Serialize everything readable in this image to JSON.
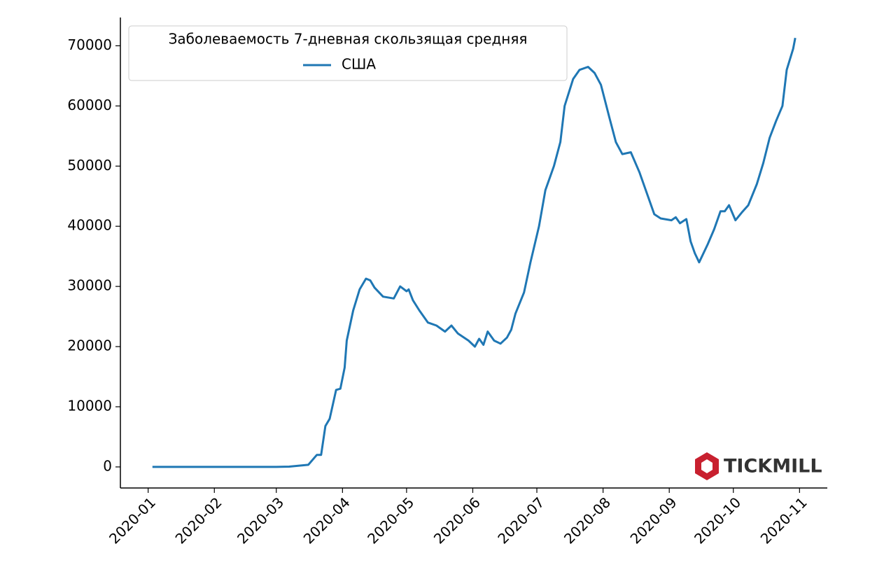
{
  "chart_data": {
    "type": "line",
    "legend_title": "Заболеваемость 7-дневная скользящая средняя",
    "legend_position": "upper left",
    "watermark": "TICKMILL",
    "x": [
      2,
      10,
      20,
      30,
      40,
      50,
      60,
      66,
      75,
      79,
      81,
      83,
      85,
      88,
      90,
      92,
      93,
      96,
      99,
      102,
      104,
      106,
      110,
      115,
      118,
      121,
      122,
      124,
      127,
      131,
      135,
      139,
      142,
      145,
      150,
      153,
      155,
      157,
      159,
      162,
      165,
      168,
      170,
      172,
      176,
      179,
      183,
      186,
      190,
      193,
      195,
      199,
      202,
      206,
      209,
      212,
      216,
      219,
      222,
      226,
      230,
      234,
      237,
      240,
      245,
      247,
      249,
      252,
      254,
      256,
      258,
      262,
      265,
      268,
      270,
      272,
      275,
      278,
      281,
      285,
      288,
      291,
      294,
      297,
      299,
      302,
      303
    ],
    "series": [
      {
        "name": "США",
        "color": "#1f77b4",
        "values": [
          0,
          0,
          0,
          0,
          0,
          0,
          0,
          50,
          350,
          2000,
          2000,
          6800,
          8000,
          12800,
          13000,
          16500,
          21000,
          26000,
          29500,
          31300,
          31000,
          29800,
          28300,
          28000,
          30000,
          29200,
          29500,
          27700,
          26000,
          24000,
          23500,
          22500,
          23500,
          22200,
          21000,
          20000,
          21300,
          20300,
          22500,
          21000,
          20500,
          21500,
          22800,
          25500,
          29000,
          34000,
          40000,
          46000,
          50000,
          54000,
          60000,
          64500,
          66000,
          66500,
          65500,
          63500,
          58000,
          54000,
          52000,
          52300,
          49000,
          45000,
          42000,
          41300,
          41000,
          41500,
          40500,
          41200,
          37500,
          35500,
          34000,
          37000,
          39500,
          42500,
          42500,
          43500,
          41000,
          42300,
          43500,
          47000,
          50500,
          54700,
          57500,
          60000,
          66000,
          69500,
          71300
        ]
      }
    ],
    "xlim": [
      -13,
      318
    ],
    "xticks": [
      {
        "value": 0,
        "label": "2020-01"
      },
      {
        "value": 31,
        "label": "2020-02"
      },
      {
        "value": 60,
        "label": "2020-03"
      },
      {
        "value": 91,
        "label": "2020-04"
      },
      {
        "value": 121,
        "label": "2020-05"
      },
      {
        "value": 152,
        "label": "2020-06"
      },
      {
        "value": 182,
        "label": "2020-07"
      },
      {
        "value": 213,
        "label": "2020-08"
      },
      {
        "value": 244,
        "label": "2020-09"
      },
      {
        "value": 274,
        "label": "2020-10"
      },
      {
        "value": 305,
        "label": "2020-11"
      }
    ],
    "ylim": [
      -3500,
      74700
    ],
    "yticks": [
      0,
      10000,
      20000,
      30000,
      40000,
      50000,
      60000,
      70000
    ],
    "grid": false
  }
}
